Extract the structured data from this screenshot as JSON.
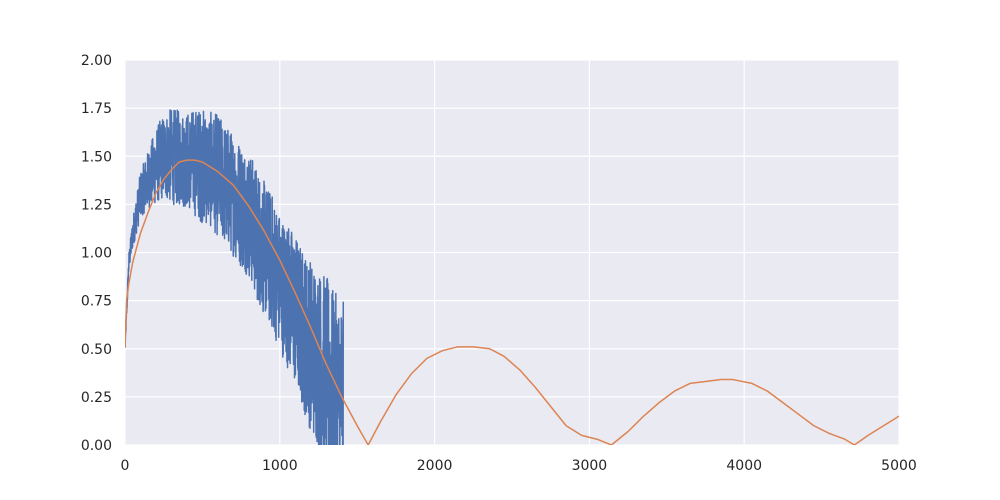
{
  "chart_data": {
    "type": "line",
    "title": "",
    "xlabel": "",
    "ylabel": "",
    "xlim": [
      0,
      5000
    ],
    "ylim": [
      0,
      2.0
    ],
    "grid": true,
    "x_ticks": [
      0,
      1000,
      2000,
      3000,
      4000,
      5000
    ],
    "x_tick_labels": [
      "0",
      "1000",
      "2000",
      "3000",
      "4000",
      "5000"
    ],
    "y_ticks": [
      0,
      0.25,
      0.5,
      0.75,
      1.0,
      1.25,
      1.5,
      1.75,
      2.0
    ],
    "y_tick_labels": [
      "0.00",
      "0.25",
      "0.50",
      "0.75",
      "1.00",
      "1.25",
      "1.50",
      "1.75",
      "2.00"
    ],
    "series": [
      {
        "color": "#4c72b0",
        "x_range": [
          0,
          1410
        ],
        "x": [
          0,
          25,
          50,
          75,
          100,
          150,
          200,
          250,
          300,
          350,
          400,
          450,
          500,
          550,
          600,
          650,
          700,
          750,
          800,
          850,
          900,
          950,
          1000,
          1050,
          1100,
          1150,
          1200,
          1250,
          1300,
          1350,
          1400,
          1410
        ],
        "y": [
          0.5,
          0.95,
          1.1,
          1.2,
          1.3,
          1.38,
          1.45,
          1.5,
          1.5,
          1.49,
          1.48,
          1.47,
          1.45,
          1.43,
          1.4,
          1.35,
          1.3,
          1.25,
          1.2,
          1.1,
          1.02,
          0.95,
          0.85,
          0.78,
          0.7,
          0.6,
          0.52,
          0.45,
          0.38,
          0.3,
          0.25,
          0.25
        ],
        "noise_amplitude": [
          0.02,
          0.05,
          0.08,
          0.1,
          0.12,
          0.15,
          0.2,
          0.22,
          0.25,
          0.25,
          0.25,
          0.28,
          0.3,
          0.3,
          0.32,
          0.32,
          0.32,
          0.33,
          0.33,
          0.35,
          0.35,
          0.36,
          0.36,
          0.38,
          0.4,
          0.42,
          0.45,
          0.47,
          0.5,
          0.5,
          0.5,
          0.5
        ]
      },
      {
        "color": "#dd8452",
        "x": [
          0,
          10,
          25,
          50,
          100,
          150,
          200,
          250,
          300,
          350,
          400,
          450,
          500,
          600,
          700,
          800,
          900,
          1000,
          1100,
          1200,
          1300,
          1400,
          1500,
          1571,
          1650,
          1750,
          1850,
          1950,
          2050,
          2150,
          2250,
          2356,
          2450,
          2550,
          2650,
          2750,
          2850,
          2950,
          3050,
          3142,
          3250,
          3350,
          3450,
          3550,
          3650,
          3750,
          3850,
          3927,
          4050,
          4150,
          4250,
          4350,
          4450,
          4550,
          4650,
          4712,
          4800,
          4900,
          5000
        ],
        "y": [
          0.51,
          0.75,
          0.84,
          0.95,
          1.1,
          1.21,
          1.31,
          1.38,
          1.43,
          1.47,
          1.48,
          1.48,
          1.47,
          1.42,
          1.35,
          1.24,
          1.11,
          0.96,
          0.79,
          0.61,
          0.42,
          0.25,
          0.1,
          0.0,
          0.12,
          0.26,
          0.37,
          0.45,
          0.49,
          0.51,
          0.51,
          0.5,
          0.46,
          0.39,
          0.3,
          0.2,
          0.1,
          0.05,
          0.03,
          0.0,
          0.07,
          0.15,
          0.22,
          0.28,
          0.32,
          0.33,
          0.34,
          0.34,
          0.32,
          0.28,
          0.22,
          0.16,
          0.1,
          0.06,
          0.03,
          0.0,
          0.05,
          0.1,
          0.15
        ]
      }
    ]
  }
}
